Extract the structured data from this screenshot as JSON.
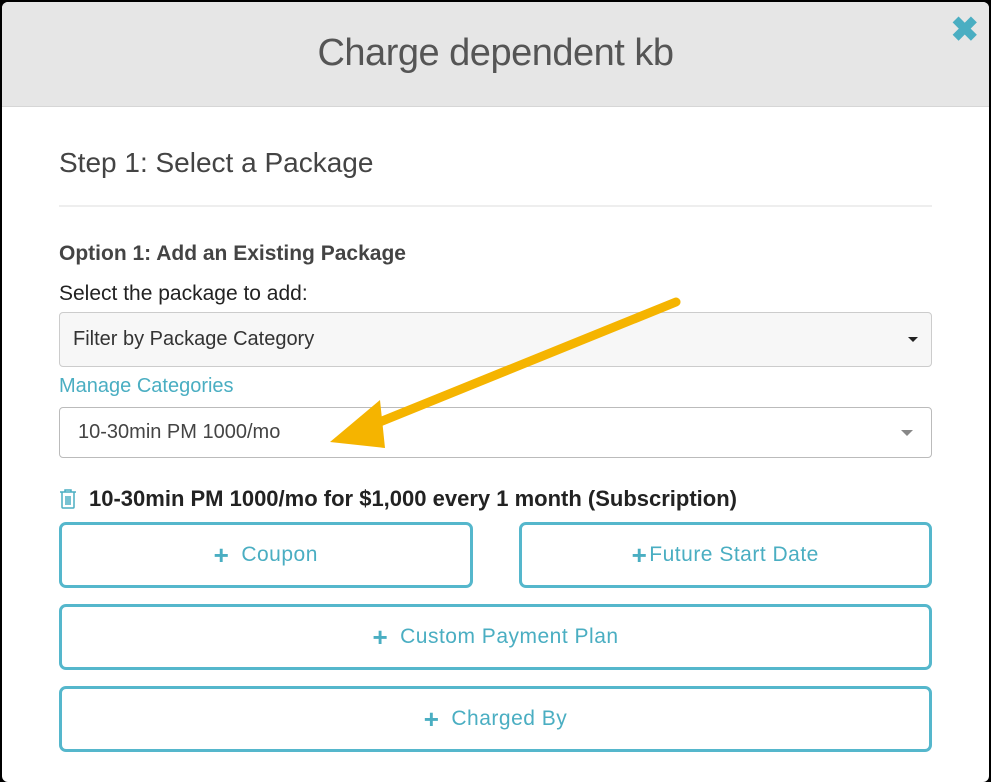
{
  "modal": {
    "title": "Charge dependent kb",
    "close_icon": "close-x-icon"
  },
  "step": {
    "title": "Step 1: Select a Package"
  },
  "option1": {
    "title": "Option 1: Add an Existing Package",
    "select_label": "Select the package to add:",
    "category_filter": "Filter by Package Category",
    "manage_link": "Manage Categories",
    "package_selected": "10-30min PM 1000/mo"
  },
  "summary": {
    "text": "10-30min PM 1000/mo for $1,000 every 1 month (Subscription)",
    "icon": "trash-icon"
  },
  "buttons": {
    "plus": "+",
    "coupon": "Coupon",
    "future_start": "Future Start Date",
    "custom_plan": "Custom Payment Plan",
    "charged_by": "Charged By"
  },
  "colors": {
    "accent": "#4aaec2",
    "arrow": "#f5b400"
  }
}
